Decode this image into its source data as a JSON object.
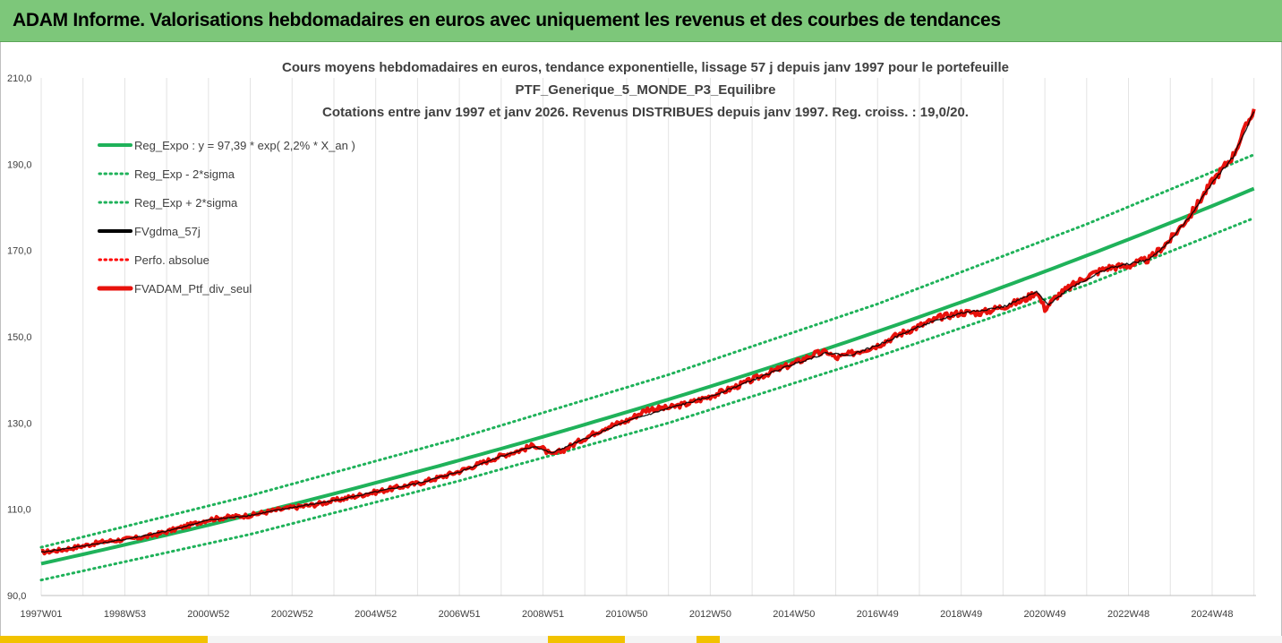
{
  "banner": {
    "title": "ADAM Informe. Valorisations hebdomadaires en euros avec uniquement les revenus et des courbes de tendances"
  },
  "colors": {
    "banner": "#7dc77a",
    "trend": "#1fb25a",
    "gdma": "#000000",
    "perf": "#ff0000",
    "ptf": "#e8120c"
  },
  "chart_data": {
    "type": "line",
    "title_lines": [
      "Cours moyens hebdomadaires  en euros, tendance exponentielle, lissage 57 j depuis janv 1997 pour le portefeuille",
      "PTF_Generique_5_MONDE_P3_Equilibre",
      "Cotations entre janv 1997 et janv 2026. Revenus DISTRIBUES depuis janv 1997. Reg. croiss. : 19,0/20."
    ],
    "xlabel": "",
    "ylabel": "",
    "ylim": [
      90,
      210
    ],
    "y_ticks": [
      "90,0",
      "110,0",
      "130,0",
      "150,0",
      "170,0",
      "190,0",
      "210,0"
    ],
    "x_ticks": [
      "1997W01",
      "1998W53",
      "2000W52",
      "2002W52",
      "2004W52",
      "2006W51",
      "2008W51",
      "2010W50",
      "2012W50",
      "2014W50",
      "2016W49",
      "2018W49",
      "2020W49",
      "2022W48",
      "2024W48"
    ],
    "x_range": [
      "1997W01",
      "2026W02"
    ],
    "grid": "vertical",
    "legend_position": "top-left",
    "legend": [
      {
        "label": "Reg_Expo : y = 97,39 * exp( 2,2% *  X_an )",
        "style": "solid-green"
      },
      {
        "label": "Reg_Exp - 2*sigma",
        "style": "dotted-green"
      },
      {
        "label": "Reg_Exp + 2*sigma",
        "style": "dotted-green"
      },
      {
        "label": "FVgdma_57j",
        "style": "solid-black"
      },
      {
        "label": "Perfo. absolue",
        "style": "dotted-red"
      },
      {
        "label": "FVADAM_Ptf_div_seul",
        "style": "thick-red"
      }
    ],
    "series": [
      {
        "name": "Reg_Expo : y = 97,39 * exp( 2,2% *  X_an )",
        "kind": "exponential",
        "y0": 97.39,
        "rate": 0.022,
        "x_unit": "years since 1997W01"
      },
      {
        "name": "Reg_Exp - 2*sigma",
        "kind": "exponential_band",
        "points": [
          [
            0,
            93.6
          ],
          [
            5,
            104.2
          ],
          [
            10,
            116.6
          ],
          [
            15,
            130.0
          ],
          [
            20,
            145.4
          ],
          [
            25,
            162.0
          ],
          [
            29,
            177.5
          ]
        ]
      },
      {
        "name": "Reg_Exp + 2*sigma",
        "kind": "exponential_band",
        "points": [
          [
            0,
            101.2
          ],
          [
            5,
            113.2
          ],
          [
            10,
            126.5
          ],
          [
            15,
            141.2
          ],
          [
            20,
            157.6
          ],
          [
            25,
            176.1
          ],
          [
            29,
            192.2
          ]
        ]
      },
      {
        "name": "FVADAM_Ptf_div_seul",
        "points": [
          [
            0,
            100.0
          ],
          [
            0.5,
            100.6
          ],
          [
            1,
            101.5
          ],
          [
            1.5,
            102.5
          ],
          [
            2,
            103.0
          ],
          [
            2.5,
            103.6
          ],
          [
            3,
            104.8
          ],
          [
            3.5,
            106.2
          ],
          [
            4,
            107.6
          ],
          [
            4.5,
            108.2
          ],
          [
            5,
            108.6
          ],
          [
            5.5,
            109.6
          ],
          [
            6,
            110.4
          ],
          [
            6.5,
            111.0
          ],
          [
            7,
            112.0
          ],
          [
            7.5,
            113.0
          ],
          [
            8,
            114.0
          ],
          [
            8.5,
            115.0
          ],
          [
            9,
            116.0
          ],
          [
            9.5,
            117.3
          ],
          [
            10,
            118.8
          ],
          [
            10.5,
            120.6
          ],
          [
            11,
            122.4
          ],
          [
            11.5,
            123.8
          ],
          [
            11.8,
            124.9
          ],
          [
            12,
            124.0
          ],
          [
            12.2,
            122.5
          ],
          [
            12.5,
            123.8
          ],
          [
            13,
            126.5
          ],
          [
            13.5,
            129.0
          ],
          [
            14,
            130.5
          ],
          [
            14.5,
            133.2
          ],
          [
            15,
            133.5
          ],
          [
            15.5,
            134.6
          ],
          [
            16,
            136.2
          ],
          [
            16.5,
            138.0
          ],
          [
            17,
            140.0
          ],
          [
            17.5,
            142.0
          ],
          [
            18,
            143.8
          ],
          [
            18.5,
            146.0
          ],
          [
            18.8,
            146.5
          ],
          [
            19,
            145.0
          ],
          [
            19.5,
            146.5
          ],
          [
            20,
            148.0
          ],
          [
            20.5,
            150.5
          ],
          [
            21,
            152.5
          ],
          [
            21.5,
            154.5
          ],
          [
            22,
            155.6
          ],
          [
            22.5,
            155.6
          ],
          [
            23,
            157.0
          ],
          [
            23.5,
            158.5
          ],
          [
            23.8,
            160.5
          ],
          [
            24.0,
            156.5
          ],
          [
            24.3,
            159.5
          ],
          [
            24.6,
            161.5
          ],
          [
            25,
            164.0
          ],
          [
            25.5,
            166.0
          ],
          [
            26,
            166.5
          ],
          [
            26.5,
            168.0
          ],
          [
            27,
            172.5
          ],
          [
            27.5,
            178.5
          ],
          [
            28,
            186.0
          ],
          [
            28.5,
            192.0
          ],
          [
            29,
            202.8
          ]
        ]
      },
      {
        "name": "FVgdma_57j",
        "points": [
          [
            0,
            100.0
          ],
          [
            1,
            101.5
          ],
          [
            2,
            103.0
          ],
          [
            3,
            104.9
          ],
          [
            4,
            107.5
          ],
          [
            5,
            108.6
          ],
          [
            6,
            110.4
          ],
          [
            7,
            112.0
          ],
          [
            8,
            114.0
          ],
          [
            9,
            116.0
          ],
          [
            10,
            118.7
          ],
          [
            11,
            122.3
          ],
          [
            11.8,
            124.6
          ],
          [
            12.2,
            123.0
          ],
          [
            13,
            126.3
          ],
          [
            14,
            130.4
          ],
          [
            15,
            133.4
          ],
          [
            16,
            136.1
          ],
          [
            17,
            139.9
          ],
          [
            18,
            143.7
          ],
          [
            18.8,
            146.3
          ],
          [
            19.3,
            145.6
          ],
          [
            20,
            148.0
          ],
          [
            21,
            152.4
          ],
          [
            22,
            155.5
          ],
          [
            23,
            156.9
          ],
          [
            23.8,
            160.3
          ],
          [
            24.1,
            157.5
          ],
          [
            24.6,
            161.3
          ],
          [
            25.5,
            165.8
          ],
          [
            26.5,
            167.9
          ],
          [
            27,
            172.3
          ],
          [
            27.5,
            178.3
          ],
          [
            28,
            185.8
          ],
          [
            28.5,
            191.6
          ],
          [
            29,
            202.2
          ]
        ]
      }
    ]
  }
}
